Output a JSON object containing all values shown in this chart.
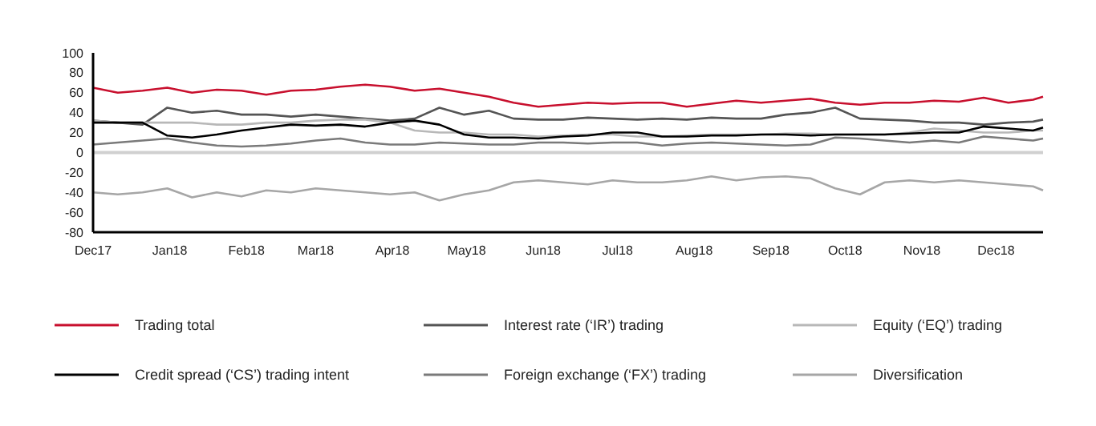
{
  "chart_data": {
    "type": "line",
    "x": [
      "2017-12-01",
      "2017-12-11",
      "2017-12-21",
      "2017-12-31",
      "2018-01-10",
      "2018-01-20",
      "2018-01-30",
      "2018-02-09",
      "2018-02-19",
      "2018-03-01",
      "2018-03-11",
      "2018-03-21",
      "2018-03-31",
      "2018-04-10",
      "2018-04-20",
      "2018-04-30",
      "2018-05-10",
      "2018-05-20",
      "2018-05-30",
      "2018-06-09",
      "2018-06-19",
      "2018-06-29",
      "2018-07-09",
      "2018-07-19",
      "2018-07-29",
      "2018-08-08",
      "2018-08-18",
      "2018-08-28",
      "2018-09-07",
      "2018-09-17",
      "2018-09-27",
      "2018-10-07",
      "2018-10-17",
      "2018-10-27",
      "2018-11-06",
      "2018-11-16",
      "2018-11-26",
      "2018-12-06",
      "2018-12-16",
      "2018-12-20"
    ],
    "series": [
      {
        "name": "Trading total",
        "color": "#c8102e",
        "values": [
          65,
          60,
          62,
          65,
          60,
          63,
          62,
          58,
          62,
          63,
          66,
          68,
          66,
          62,
          64,
          60,
          56,
          50,
          46,
          48,
          50,
          49,
          50,
          50,
          46,
          49,
          52,
          50,
          52,
          54,
          50,
          48,
          50,
          50,
          52,
          51,
          55,
          50,
          53,
          56
        ]
      },
      {
        "name": "Interest rate (‘IR’) trading",
        "color": "#555555",
        "values": [
          32,
          30,
          28,
          45,
          40,
          42,
          38,
          38,
          36,
          38,
          36,
          34,
          32,
          34,
          45,
          38,
          42,
          34,
          33,
          33,
          35,
          34,
          33,
          34,
          33,
          35,
          34,
          34,
          38,
          40,
          45,
          34,
          33,
          32,
          30,
          30,
          28,
          30,
          31,
          33
        ]
      },
      {
        "name": "Equity (‘EQ’) trading",
        "color": "#b8b8b8",
        "values": [
          32,
          30,
          30,
          30,
          30,
          28,
          28,
          30,
          30,
          32,
          33,
          33,
          30,
          22,
          20,
          20,
          18,
          18,
          16,
          17,
          18,
          18,
          16,
          16,
          17,
          18,
          18,
          18,
          19,
          19,
          18,
          18,
          18,
          20,
          24,
          22,
          20,
          20,
          22,
          22
        ]
      },
      {
        "name": "Credit spread (‘CS’) trading intent",
        "color": "#000000",
        "values": [
          30,
          30,
          30,
          17,
          15,
          18,
          22,
          25,
          28,
          27,
          28,
          26,
          30,
          32,
          28,
          18,
          15,
          15,
          14,
          16,
          17,
          20,
          20,
          16,
          16,
          17,
          17,
          18,
          18,
          17,
          18,
          18,
          18,
          19,
          20,
          20,
          26,
          24,
          22,
          25
        ]
      },
      {
        "name": "Foreign exchange (‘FX’) trading",
        "color": "#7a7a7a",
        "values": [
          8,
          10,
          12,
          14,
          10,
          7,
          6,
          7,
          9,
          12,
          14,
          10,
          8,
          8,
          10,
          9,
          8,
          8,
          10,
          10,
          9,
          10,
          10,
          7,
          9,
          10,
          9,
          8,
          7,
          8,
          15,
          14,
          12,
          10,
          12,
          10,
          16,
          14,
          12,
          14
        ]
      },
      {
        "name": "Diversification",
        "color": "#a6a6a6",
        "values": [
          -40,
          -42,
          -40,
          -36,
          -45,
          -40,
          -44,
          -38,
          -40,
          -36,
          -38,
          -40,
          -42,
          -40,
          -48,
          -42,
          -38,
          -30,
          -28,
          -30,
          -32,
          -28,
          -30,
          -30,
          -28,
          -24,
          -28,
          -25,
          -24,
          -26,
          -36,
          -42,
          -30,
          -28,
          -30,
          -28,
          -30,
          -32,
          -34,
          -38
        ]
      }
    ],
    "xlim": [
      "2017-12-01",
      "2018-12-20"
    ],
    "xticks": [
      {
        "value": "2017-12-01",
        "label": "Dec17"
      },
      {
        "value": "2018-01-01",
        "label": "Jan18"
      },
      {
        "value": "2018-02-01",
        "label": "Feb18"
      },
      {
        "value": "2018-03-01",
        "label": "Mar18"
      },
      {
        "value": "2018-04-01",
        "label": "Apr18"
      },
      {
        "value": "2018-05-01",
        "label": "May18"
      },
      {
        "value": "2018-06-01",
        "label": "Jun18"
      },
      {
        "value": "2018-07-01",
        "label": "Jul18"
      },
      {
        "value": "2018-08-01",
        "label": "Aug18"
      },
      {
        "value": "2018-09-01",
        "label": "Sep18"
      },
      {
        "value": "2018-10-01",
        "label": "Oct18"
      },
      {
        "value": "2018-11-01",
        "label": "Nov18"
      },
      {
        "value": "2018-12-01",
        "label": "Dec18"
      }
    ],
    "ylim": [
      -80,
      100
    ],
    "yticks": [
      -80,
      -60,
      -40,
      -20,
      0,
      20,
      40,
      60,
      80,
      100
    ],
    "ref_lines": [
      {
        "axis": "y",
        "value": 0,
        "color": "#d0d0d0"
      }
    ],
    "grid": false,
    "legend": "bottom",
    "marker": "none",
    "line_style": "solid"
  }
}
